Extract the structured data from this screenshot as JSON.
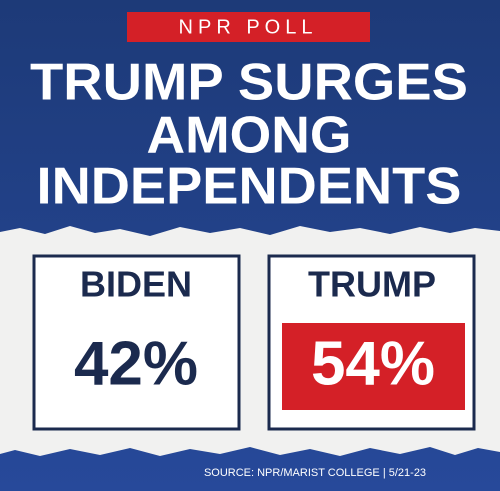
{
  "header": {
    "badge": "NPR POLL",
    "title_lines": [
      "TRUMP SURGES",
      "AMONG",
      "INDEPENDENTS"
    ]
  },
  "cards": [
    {
      "name": "BIDEN",
      "value": "42%"
    },
    {
      "name": "TRUMP",
      "value": "54%"
    }
  ],
  "footer": {
    "source": "SOURCE: NPR/MARIST COLLEGE | 5/21-23"
  }
}
